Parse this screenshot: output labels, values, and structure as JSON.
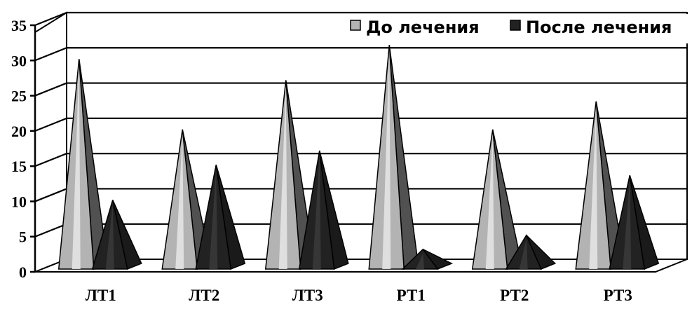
{
  "chart_data": {
    "type": "bar",
    "style": "3d-pyramid",
    "categories": [
      "ЛТ1",
      "ЛТ2",
      "ЛТ3",
      "РТ1",
      "РТ2",
      "РТ3"
    ],
    "series": [
      {
        "name": "До лечения",
        "values": [
          30,
          20,
          27,
          32,
          20,
          24
        ],
        "color": "#b3b3b3"
      },
      {
        "name": "После лечения",
        "values": [
          10,
          15,
          17,
          3,
          5,
          13.5
        ],
        "color": "#222222"
      }
    ],
    "title": "",
    "xlabel": "",
    "ylabel": "",
    "ylim": [
      0,
      35
    ],
    "yticks": [
      0,
      5,
      10,
      15,
      20,
      25,
      30,
      35
    ],
    "grid": true,
    "legend_position": "top-right"
  }
}
